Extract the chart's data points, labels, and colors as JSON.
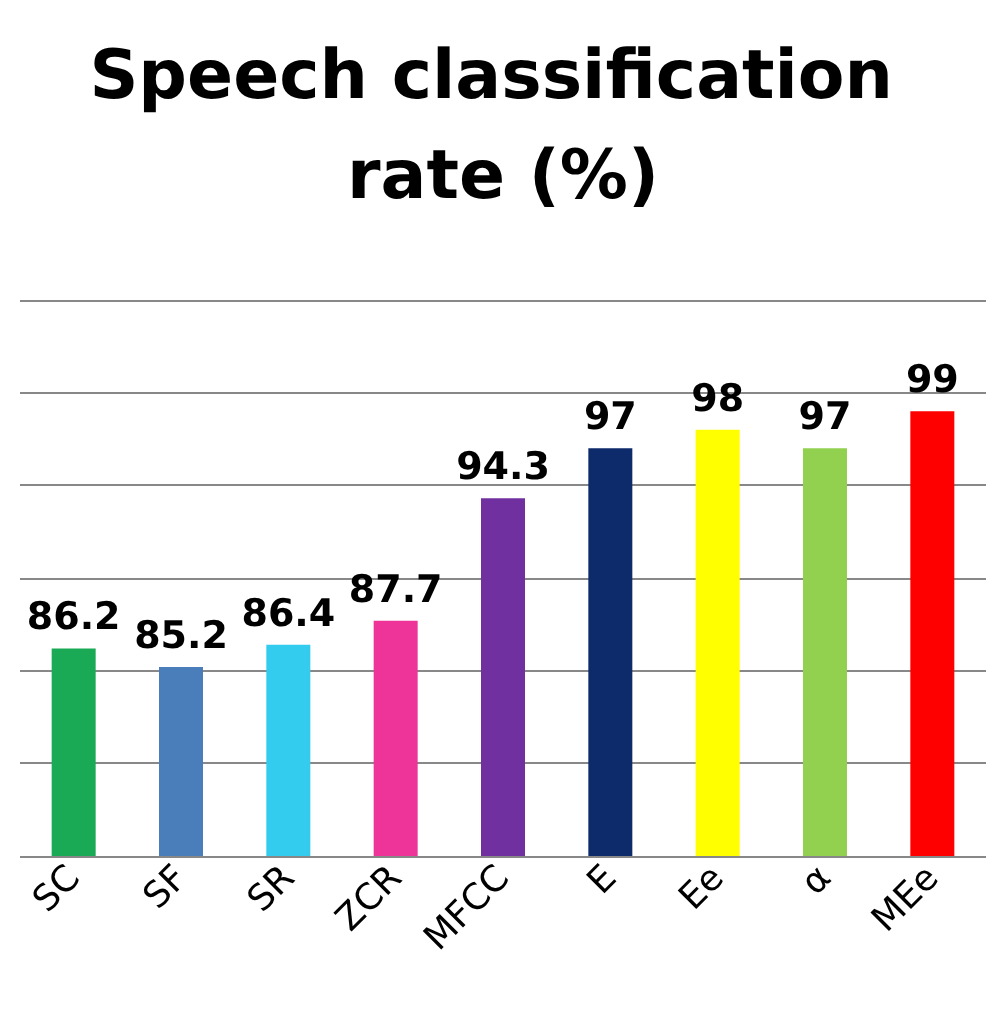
{
  "chart_data": {
    "type": "bar",
    "title": "Speech classification rate (%)",
    "categories": [
      "SC",
      "SF",
      "SR",
      "ZCR",
      "MFCC",
      "E",
      "Ee",
      "α",
      "MEe"
    ],
    "values": [
      86.2,
      85.2,
      86.4,
      87.7,
      94.3,
      97,
      98,
      97,
      99
    ],
    "colors": [
      "#1aaa55",
      "#4a7ebb",
      "#33ccee",
      "#ee3399",
      "#7030a0",
      "#0d2a6b",
      "#ffff00",
      "#92d050",
      "#ff0000"
    ],
    "ylim": [
      75,
      105
    ],
    "yticks": [
      {
        "value": 75,
        "label": null
      },
      {
        "value": 80,
        "label": null
      },
      {
        "value": 85,
        "label": null
      },
      {
        "value": 90,
        "label": null
      },
      {
        "value": 95,
        "label": null
      },
      {
        "value": 100,
        "label": null
      },
      {
        "value": 105,
        "label": null
      }
    ],
    "grid": "y",
    "tick_labels": "x",
    "data_labels": true
  }
}
